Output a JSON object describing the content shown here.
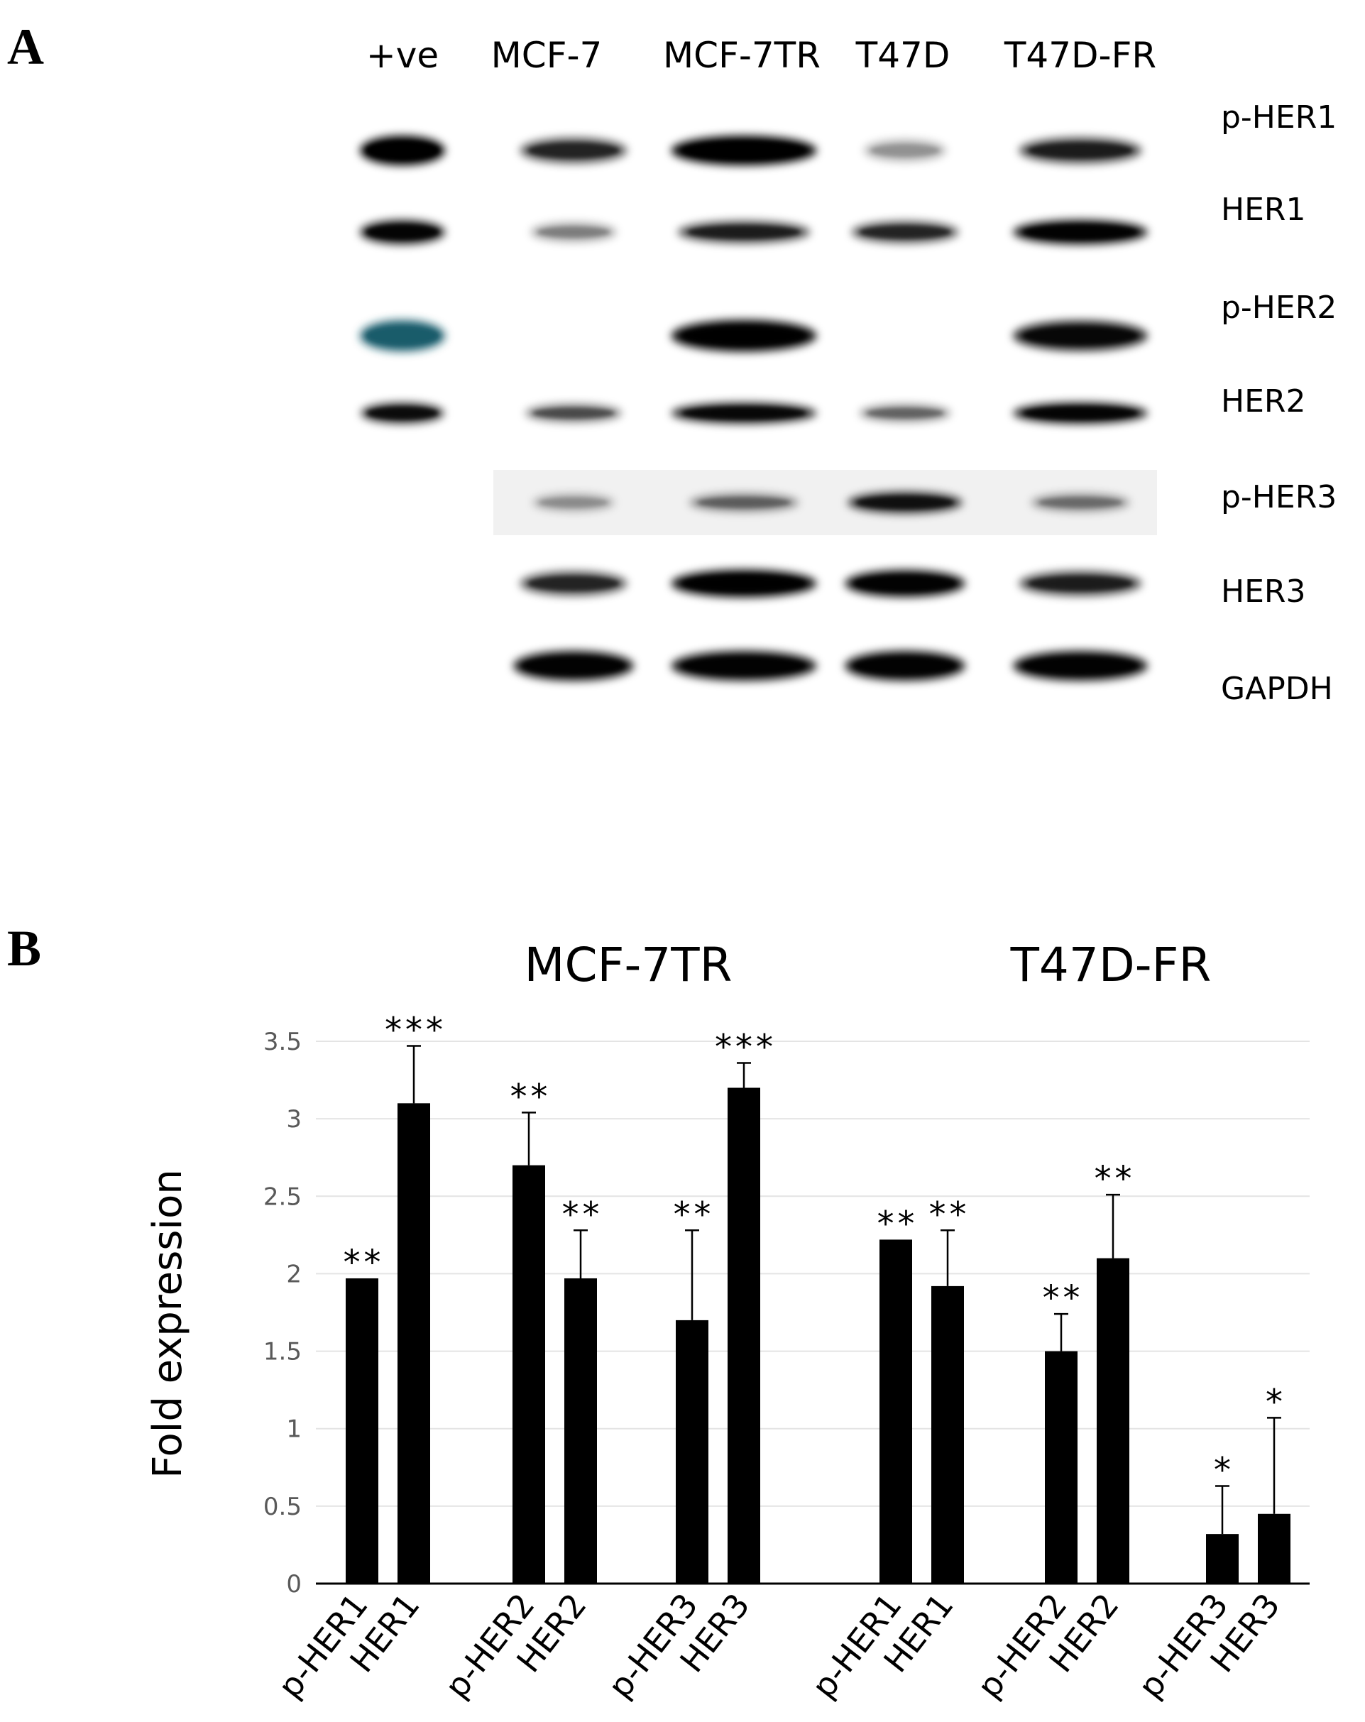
{
  "figure": {
    "panel_a_letter": "A",
    "panel_b_letter": "B"
  },
  "blot": {
    "lanes": [
      "+ve",
      "MCF-7",
      "MCF-7TR",
      "T47D",
      "T47D-FR"
    ],
    "proteins": [
      "p-HER1",
      "HER1",
      "p-HER2",
      "HER2",
      "p-HER3",
      "HER3",
      "GAPDH"
    ],
    "band_intensity": [
      [
        1.0,
        0.55,
        1.0,
        0.08,
        0.6
      ],
      [
        0.85,
        0.15,
        0.6,
        0.55,
        0.9
      ],
      [
        0.9,
        0.0,
        0.95,
        0.0,
        0.8
      ],
      [
        0.75,
        0.35,
        0.8,
        0.25,
        0.85
      ],
      [
        0.0,
        0.08,
        0.25,
        0.7,
        0.2
      ],
      [
        0.0,
        0.55,
        0.95,
        0.9,
        0.6
      ],
      [
        0.0,
        0.9,
        0.9,
        0.9,
        0.9
      ]
    ],
    "accent_color": "#1a5a6a"
  },
  "chart_data": {
    "type": "bar",
    "groups": [
      "MCF-7TR",
      "T47D-FR"
    ],
    "categories": [
      "p-HER1",
      "HER1",
      "p-HER2",
      "HER2",
      "p-HER3",
      "HER3",
      "p-HER1",
      "HER1",
      "p-HER2",
      "HER2",
      "p-HER3",
      "HER3"
    ],
    "category_group": [
      0,
      0,
      0,
      0,
      0,
      0,
      1,
      1,
      1,
      1,
      1,
      1
    ],
    "values": [
      1.97,
      3.1,
      2.7,
      1.97,
      1.7,
      3.2,
      2.22,
      1.92,
      1.5,
      2.1,
      0.32,
      0.45
    ],
    "error": [
      0,
      0.37,
      0.34,
      0.31,
      0.58,
      0.16,
      0,
      0.36,
      0.24,
      0.41,
      0.31,
      0.62
    ],
    "significance": [
      "**",
      "***",
      "**",
      "**",
      "**",
      "***",
      "**",
      "**",
      "**",
      "**",
      "*",
      "*"
    ],
    "ylabel": "Fold expression",
    "ylim": [
      0,
      3.5
    ],
    "yticks": [
      "0",
      "0.5",
      "1",
      "1.5",
      "2",
      "2.5",
      "3",
      "3.5"
    ],
    "bar_color": "#000000",
    "grid": true
  }
}
